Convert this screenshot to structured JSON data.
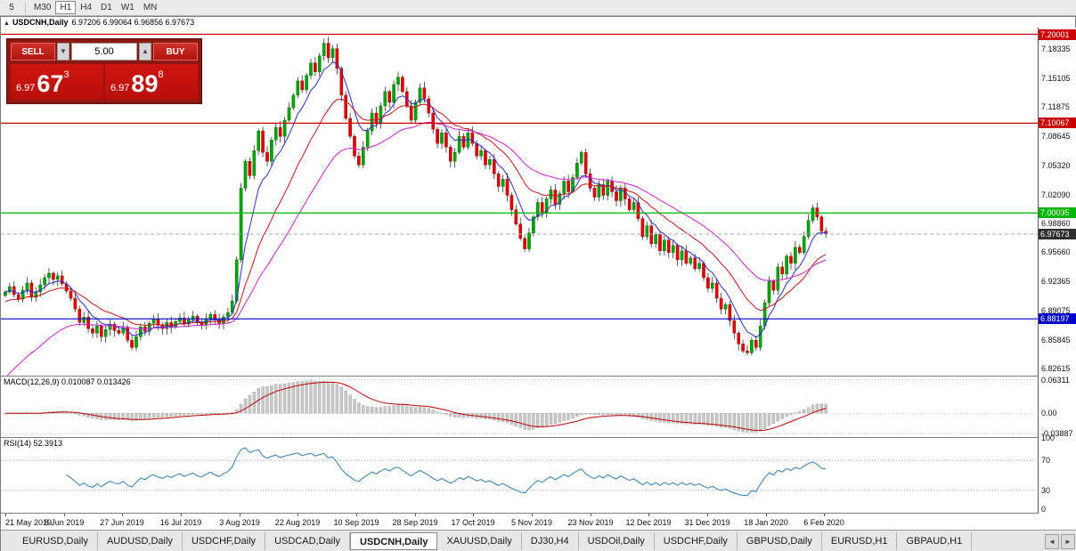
{
  "icons": {
    "collapse_arrow": "▲",
    "spin_down": "▼",
    "spin_up": "▲",
    "tab_prev": "◄",
    "tab_next": "►"
  },
  "toolbar": {
    "timeframes": [
      "5",
      "M30",
      "H1",
      "H4",
      "D1",
      "W1",
      "MN"
    ],
    "active_timeframe": "H1"
  },
  "title_bar": {
    "symbol": "USDCNH,Daily",
    "ohlc": "6.97206 6.99064 6.96856 6.97673"
  },
  "trade_panel": {
    "sell_label": "SELL",
    "buy_label": "BUY",
    "volume": "5.00",
    "bid": {
      "small": "6.97",
      "big": "67",
      "sup": "3"
    },
    "ask": {
      "small": "6.97",
      "big": "89",
      "sup": "8"
    }
  },
  "bottom_tabs": {
    "tabs": [
      "EURUSD,Daily",
      "AUDUSD,Daily",
      "USDCHF,Daily",
      "USDCAD,Daily",
      "USDCNH,Daily",
      "XAUUSD,Daily",
      "DJ30,H4",
      "USDOil,Daily",
      "USDCHF,Daily",
      "GBPUSD,Daily",
      "EURUSD,H1",
      "GBPAUD,H1"
    ],
    "active_index": 4
  },
  "chart_data": {
    "type": "candlestick",
    "symbol": "USDCNH",
    "timeframe": "Daily",
    "ohlc_display": "6.97206 6.99064 6.96856 6.97673",
    "price_range": {
      "top": 7.2075,
      "bottom": 6.8185
    },
    "y_axis_labels": [
      "7.18335",
      "7.15105",
      "7.11875",
      "7.08645",
      "7.05320",
      "7.02090",
      "6.98860",
      "6.95660",
      "6.92365",
      "6.89075",
      "6.85845",
      "6.82615"
    ],
    "x_labels": [
      "21 May 2019",
      "8 Jun 2019",
      "27 Jun 2019",
      "16 Jul 2019",
      "3 Aug 2019",
      "22 Aug 2019",
      "10 Sep 2019",
      "28 Sep 2019",
      "17 Oct 2019",
      "5 Nov 2019",
      "23 Nov 2019",
      "12 Dec 2019",
      "31 Dec 2019",
      "18 Jan 2020",
      "6 Feb 2020"
    ],
    "levels": [
      {
        "price": 7.20001,
        "label": "7.20001",
        "color": "#cc0000"
      },
      {
        "price": 7.10067,
        "label": "7.10067",
        "color": "#cc0000"
      },
      {
        "price": 7.00035,
        "label": "7.00035",
        "color": "#00b400"
      },
      {
        "price": 6.88197,
        "label": "6.88197",
        "color": "#0000cc"
      }
    ],
    "current": {
      "price": 6.97673,
      "label": "6.97673",
      "badge_color": "#2f2f2f"
    },
    "colors": {
      "up": "#00a400",
      "down": "#e00000",
      "wick": "#1a1a1a",
      "macd_hist": "#c8c8c8",
      "macd_signal": "#c00000",
      "rsi_line": "#2e7fb5"
    },
    "closes": [
      6.912,
      6.918,
      6.909,
      6.904,
      6.914,
      6.922,
      6.906,
      6.912,
      6.92,
      6.928,
      6.933,
      6.926,
      6.93,
      6.921,
      6.913,
      6.905,
      6.893,
      6.878,
      6.884,
      6.871,
      6.866,
      6.874,
      6.862,
      6.87,
      6.876,
      6.869,
      6.866,
      6.872,
      6.858,
      6.85,
      6.862,
      6.873,
      6.868,
      6.877,
      6.882,
      6.875,
      6.871,
      6.878,
      6.873,
      6.879,
      6.883,
      6.876,
      6.881,
      6.885,
      6.878,
      6.875,
      6.882,
      6.887,
      6.881,
      6.877,
      6.884,
      6.889,
      6.902,
      6.948,
      7.028,
      7.058,
      7.042,
      7.07,
      7.092,
      7.068,
      7.058,
      7.082,
      7.096,
      7.086,
      7.104,
      7.118,
      7.132,
      7.148,
      7.138,
      7.154,
      7.168,
      7.158,
      7.176,
      7.19,
      7.174,
      7.184,
      7.162,
      7.132,
      7.106,
      7.086,
      7.064,
      7.054,
      7.074,
      7.092,
      7.112,
      7.1,
      7.12,
      7.136,
      7.124,
      7.144,
      7.152,
      7.136,
      7.12,
      7.104,
      7.124,
      7.14,
      7.128,
      7.112,
      7.094,
      7.078,
      7.09,
      7.074,
      7.058,
      7.068,
      7.086,
      7.074,
      7.09,
      7.078,
      7.064,
      7.07,
      7.054,
      7.06,
      7.044,
      7.03,
      7.038,
      7.02,
      7.004,
      6.988,
      6.972,
      6.96,
      6.978,
      6.996,
      7.012,
      7.0,
      7.016,
      7.026,
      7.01,
      7.022,
      7.036,
      7.024,
      7.04,
      7.056,
      7.068,
      7.044,
      7.028,
      7.018,
      7.032,
      7.02,
      7.036,
      7.024,
      7.014,
      7.028,
      7.016,
      7.004,
      7.012,
      6.994,
      6.974,
      6.986,
      6.966,
      6.976,
      6.958,
      6.97,
      6.956,
      6.964,
      6.948,
      6.958,
      6.944,
      6.95,
      6.938,
      6.944,
      6.928,
      6.916,
      6.922,
      6.905,
      6.893,
      6.898,
      6.88,
      6.866,
      6.854,
      6.846,
      6.844,
      6.858,
      6.85,
      6.874,
      6.9,
      6.924,
      6.914,
      6.94,
      6.932,
      6.952,
      6.944,
      6.962,
      6.956,
      6.974,
      6.992,
      7.006,
      6.996,
      6.98,
      6.977
    ],
    "indicators": {
      "ma": [
        {
          "name": "ma-fast",
          "period": 7,
          "seed": 6.912,
          "color": "#2d2dd0"
        },
        {
          "name": "ma-medium",
          "period": 18,
          "seed": 6.9,
          "color": "#c21818"
        },
        {
          "name": "ma-slow",
          "period": 35,
          "seed": 6.81,
          "color": "#d020d0"
        }
      ],
      "macd": {
        "label": "MACD(12,26,9) 0.010087 0.013426",
        "params": [
          12,
          26,
          9
        ],
        "axis_labels": [
          "0.06311",
          "0.00",
          "-0.03887"
        ],
        "range": {
          "top": 0.0695,
          "bottom": -0.045
        }
      },
      "rsi": {
        "label": "RSI(14) 52.3913",
        "period": 14,
        "axis_labels": [
          "100",
          "70",
          "30",
          "0"
        ],
        "levels": [
          70,
          30
        ]
      }
    }
  }
}
